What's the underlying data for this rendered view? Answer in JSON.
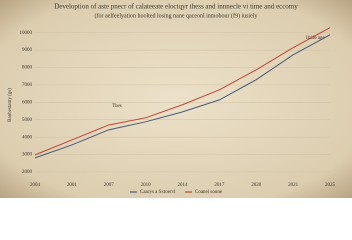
{
  "chart_data": {
    "type": "line",
    "title": "Develoption of aste pnecr of calateeate eloctqyr thess and innnecle vi time and eccomy",
    "subtitle": "(for aelfeelyation hoolted losing nane qaceonl inmobour (f9) iusiely",
    "y_label": "Banbestamy (gs)",
    "categories": [
      "2004",
      "2001",
      "2007",
      "2010",
      "2014",
      "2017",
      "2020",
      "2021",
      "2025"
    ],
    "series": [
      {
        "name": "Caarys a Sxtoervl",
        "color": "#4a5a78",
        "values": [
          2810,
          3550,
          4420,
          4880,
          5450,
          6140,
          7300,
          8730,
          9880
        ]
      },
      {
        "name": "Coanel soone",
        "color": "#c0443a",
        "values": [
          2980,
          3840,
          4700,
          5110,
          5860,
          6720,
          7870,
          9140,
          10290
        ]
      }
    ],
    "annotations": [
      "Thes",
      "Ilalfe age"
    ],
    "ylim": [
      1250,
      10500
    ],
    "yticks": [
      2000,
      3000,
      4000,
      5000,
      6000,
      7000,
      8000,
      9000,
      10000
    ],
    "grid": true
  }
}
